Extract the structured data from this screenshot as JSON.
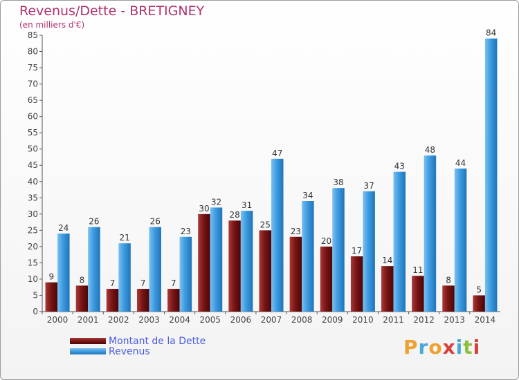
{
  "header": {
    "title": "Revenus/Dette - BRETIGNEY",
    "subtitle": "(en milliers d'€)"
  },
  "colors": {
    "dette": "#7a1515",
    "revenus": "#3d9be0",
    "title": "#b0306b",
    "legend_text": "#4a5adf"
  },
  "legend": {
    "dette_label": "Montant de la Dette",
    "revenus_label": "Revenus"
  },
  "logo": {
    "letters": [
      "P",
      "r",
      "o",
      "x",
      "i",
      "t",
      "i"
    ],
    "colors": [
      "#f0a030",
      "#48a8d8",
      "#f0a030",
      "#d8403a",
      "#48a8d8",
      "#8cc03c",
      "#d8403a"
    ]
  },
  "chart_data": {
    "type": "bar",
    "categories": [
      "2000",
      "2001",
      "2002",
      "2003",
      "2004",
      "2005",
      "2006",
      "2007",
      "2008",
      "2009",
      "2010",
      "2011",
      "2012",
      "2013",
      "2014"
    ],
    "series": [
      {
        "name": "Montant de la Dette",
        "values": [
          9,
          8,
          7,
          7,
          7,
          30,
          28,
          25,
          23,
          20,
          17,
          14,
          11,
          8,
          5
        ]
      },
      {
        "name": "Revenus",
        "values": [
          24,
          26,
          21,
          26,
          23,
          32,
          31,
          47,
          34,
          38,
          37,
          43,
          48,
          44,
          84
        ]
      }
    ],
    "title": "Revenus/Dette - BRETIGNEY",
    "ylabel": "(en milliers d'€)",
    "ylim": [
      0,
      85
    ],
    "yticks": [
      0,
      5,
      10,
      15,
      20,
      25,
      30,
      35,
      40,
      45,
      50,
      55,
      60,
      65,
      70,
      75,
      80,
      85
    ],
    "grid": false,
    "legend_position": "bottom-left"
  }
}
